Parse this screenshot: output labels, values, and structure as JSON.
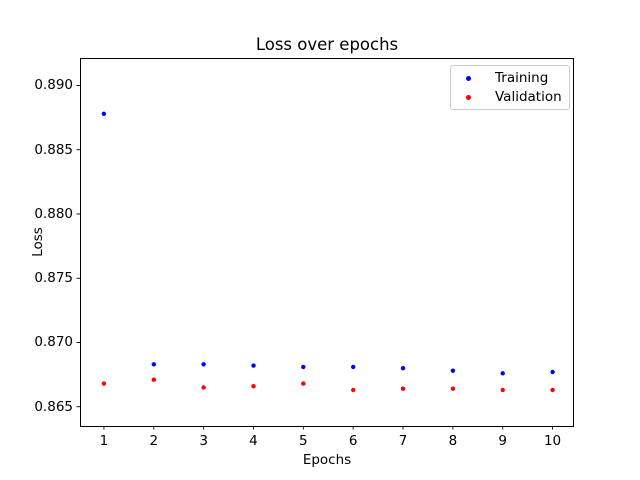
{
  "chart_data": {
    "type": "scatter",
    "title": "Loss over epochs",
    "xlabel": "Epochs",
    "ylabel": "Loss",
    "x": [
      1,
      2,
      3,
      4,
      5,
      6,
      7,
      8,
      9,
      10
    ],
    "series": [
      {
        "name": "Training",
        "color": "#0000ff",
        "values": [
          0.8878,
          0.8683,
          0.8683,
          0.8682,
          0.8681,
          0.8681,
          0.868,
          0.8678,
          0.8676,
          0.8677
        ]
      },
      {
        "name": "Validation",
        "color": "#ff0000",
        "values": [
          0.8668,
          0.8671,
          0.8665,
          0.8666,
          0.8668,
          0.8663,
          0.8664,
          0.8664,
          0.8663,
          0.8663
        ]
      }
    ],
    "xlim": [
      0.52,
      10.42
    ],
    "ylim": [
      0.8635,
      0.8921
    ],
    "xticks": [
      1,
      2,
      3,
      4,
      5,
      6,
      7,
      8,
      9,
      10
    ],
    "yticks": [
      0.865,
      0.87,
      0.875,
      0.88,
      0.885,
      0.89
    ],
    "ytick_decimals": 3,
    "grid": false,
    "legend": {
      "location": "upper right",
      "entries": [
        "Training",
        "Validation"
      ]
    },
    "colors": {
      "axis": "#000000",
      "legend_border": "#cccccc",
      "background": "#ffffff"
    }
  }
}
